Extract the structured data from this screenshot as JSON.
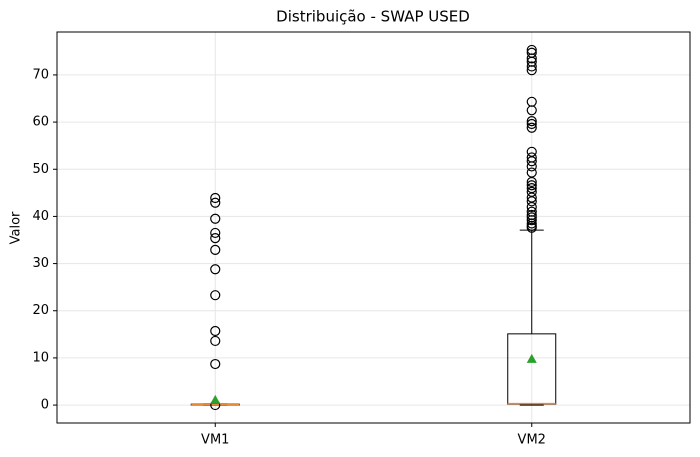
{
  "chart_data": {
    "type": "boxplot",
    "title": "Distribuição - SWAP USED",
    "y_label": "Valor",
    "categories": [
      "VM1",
      "VM2"
    ],
    "boxes": [
      {
        "whislo": 0,
        "q1": 0,
        "med": 0.1,
        "q3": 0.2,
        "whishi": 0.2,
        "mean": 1.1,
        "fliers": [
          43.9,
          42.9,
          39.5,
          36.5,
          35.4,
          32.9,
          28.8,
          23.3,
          15.7,
          13.6,
          8.7,
          0
        ]
      },
      {
        "whislo": 0,
        "q1": 0.2,
        "med": 0.3,
        "q3": 15.1,
        "whishi": 37.1,
        "mean": 9.8,
        "fliers": [
          37.6,
          38.0,
          38.5,
          39.2,
          39.8,
          40.3,
          41.0,
          42.0,
          43.2,
          44.0,
          45.2,
          46.0,
          46.6,
          47.3,
          49.3,
          50.6,
          51.7,
          52.5,
          53.7,
          58.8,
          59.6,
          60.2,
          62.5,
          64.3,
          71.0,
          71.8,
          72.8,
          73.5,
          74.7,
          75.3
        ]
      }
    ],
    "box_color": "#000000",
    "median_color": "#e8883a",
    "mean_color": "#2ca02c",
    "ylim": [
      -3.8,
      79.1
    ],
    "yticks": [
      0,
      10,
      20,
      30,
      40,
      50,
      60,
      70
    ],
    "grid": true
  }
}
